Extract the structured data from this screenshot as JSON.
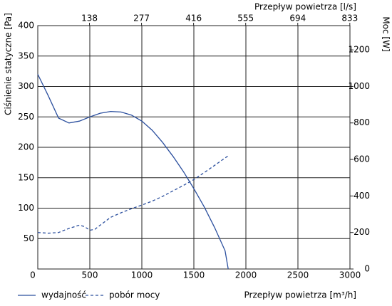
{
  "chart_data": {
    "type": "line",
    "y_label": "Ciśnienie statyczne [Pa]",
    "y2_label": "Moc [W]",
    "x_label": "Przepływ powietrza [m³/h]",
    "x2_label": "Przepływ powietrza [l/s]",
    "xlim": [
      0,
      3000
    ],
    "xticks": [
      0,
      500,
      1000,
      1500,
      2000,
      2500,
      3000
    ],
    "x2lim": [
      0,
      833.33
    ],
    "x2ticks": [
      138,
      277,
      416,
      555,
      694,
      833
    ],
    "ylim": [
      0,
      400
    ],
    "yticks": [
      50,
      100,
      150,
      200,
      250,
      300,
      350,
      400
    ],
    "y2lim": [
      0,
      1333
    ],
    "y2ticks": [
      0,
      200,
      400,
      600,
      800,
      1000,
      1200
    ],
    "grid": true,
    "series": [
      {
        "name": "wydajność",
        "color": "#2b4f9e",
        "dash": "solid",
        "x": [
          0,
          100,
          200,
          300,
          400,
          500,
          600,
          700,
          800,
          900,
          1000,
          1100,
          1200,
          1300,
          1400,
          1500,
          1600,
          1700,
          1800,
          1830
        ],
        "values": [
          320,
          285,
          248,
          240,
          243,
          250,
          256,
          259,
          258,
          253,
          243,
          228,
          208,
          185,
          160,
          132,
          102,
          68,
          30,
          0
        ]
      },
      {
        "name": "pobór mocy",
        "color": "#2b4f9e",
        "dash": "dashed",
        "axis": "y2",
        "x": [
          0,
          100,
          200,
          300,
          400,
          450,
          500,
          550,
          600,
          700,
          800,
          900,
          1000,
          1100,
          1200,
          1300,
          1400,
          1500,
          1600,
          1700,
          1830
        ],
        "values": [
          200,
          196,
          200,
          222,
          240,
          232,
          212,
          218,
          240,
          283,
          308,
          330,
          350,
          372,
          398,
          428,
          458,
          490,
          528,
          568,
          620
        ]
      }
    ]
  }
}
